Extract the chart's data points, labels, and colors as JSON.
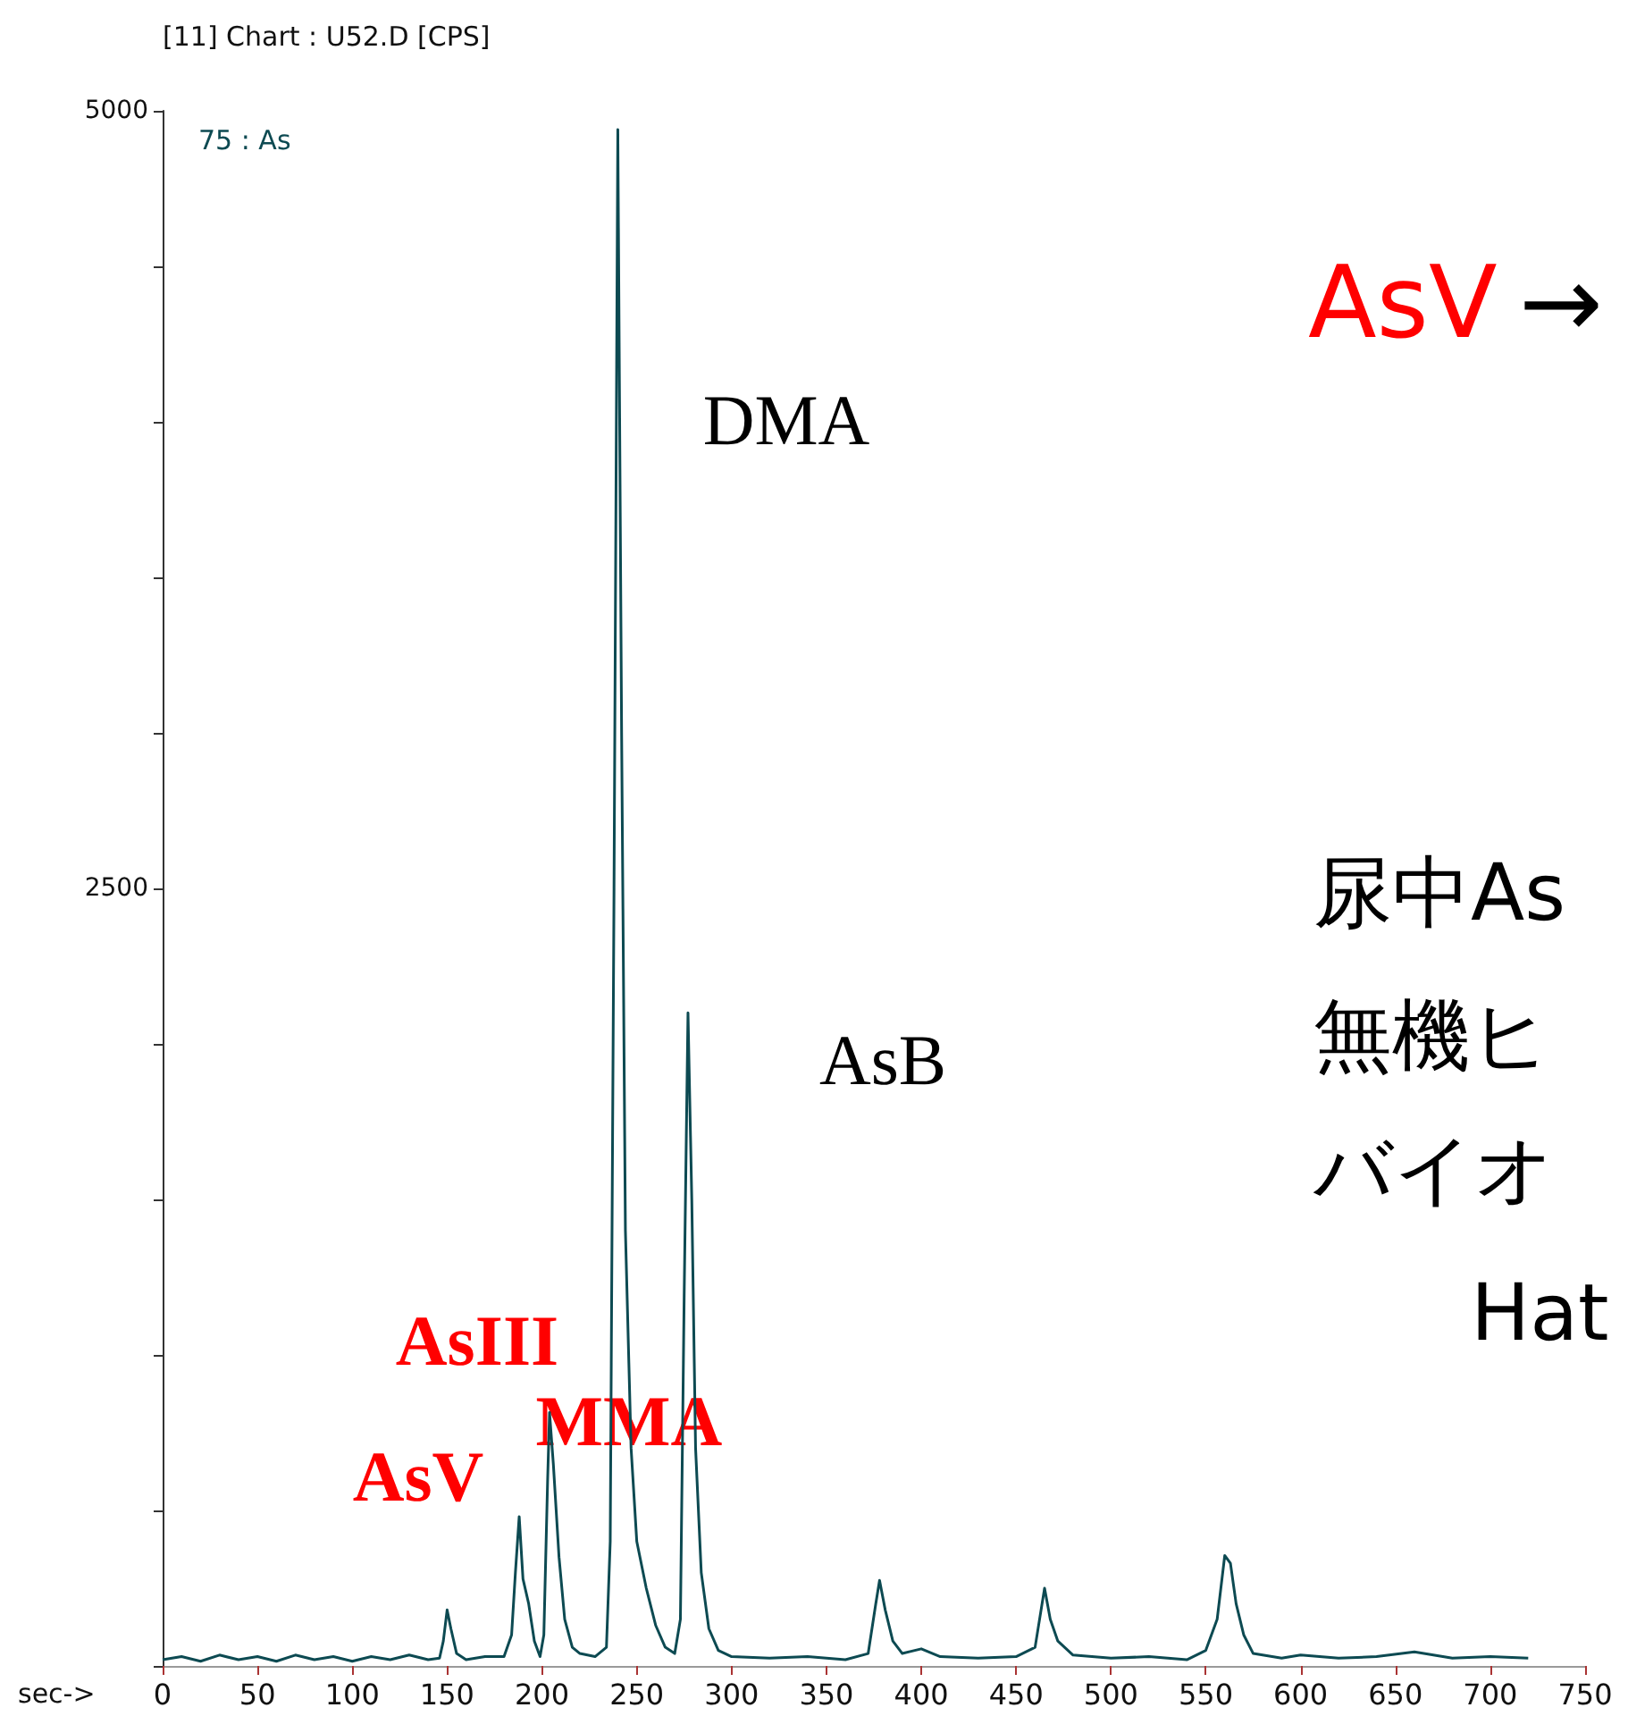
{
  "chart_data": {
    "type": "line",
    "title": "[11] Chart : U52.D [CPS]",
    "xlabel": "sec->",
    "x": [
      0,
      10,
      20,
      30,
      40,
      50,
      60,
      70,
      80,
      90,
      100,
      110,
      120,
      130,
      140,
      146,
      148,
      150,
      152,
      155,
      160,
      170,
      180,
      184,
      186,
      188,
      190,
      193,
      196,
      199,
      201,
      203,
      204,
      206,
      209,
      212,
      216,
      220,
      228,
      234,
      236,
      238,
      240,
      242,
      244,
      247,
      250,
      255,
      260,
      265,
      270,
      273,
      275,
      277,
      279,
      281,
      284,
      288,
      293,
      300,
      320,
      340,
      360,
      372,
      376,
      378,
      381,
      385,
      390,
      400,
      410,
      430,
      450,
      460,
      465,
      468,
      472,
      480,
      500,
      520,
      540,
      550,
      556,
      560,
      563,
      566,
      570,
      575,
      590,
      600,
      620,
      640,
      660,
      680,
      700,
      720
    ],
    "series": [
      {
        "name": "75 : As",
        "color": "#0d4a52",
        "values": [
          20,
          30,
          15,
          35,
          20,
          30,
          15,
          35,
          20,
          30,
          15,
          30,
          20,
          35,
          20,
          25,
          80,
          180,
          120,
          40,
          20,
          30,
          30,
          100,
          300,
          480,
          280,
          200,
          80,
          30,
          100,
          600,
          815,
          650,
          350,
          150,
          60,
          40,
          30,
          60,
          400,
          2500,
          4940,
          3000,
          1400,
          700,
          400,
          250,
          130,
          60,
          40,
          150,
          1200,
          2100,
          1500,
          700,
          300,
          120,
          50,
          30,
          25,
          30,
          20,
          40,
          200,
          275,
          180,
          80,
          40,
          55,
          30,
          25,
          30,
          60,
          250,
          150,
          80,
          35,
          25,
          30,
          20,
          50,
          150,
          355,
          330,
          200,
          100,
          40,
          25,
          35,
          25,
          30,
          45,
          25,
          30,
          25
        ]
      }
    ],
    "xlim": [
      0,
      750
    ],
    "xticks": [
      0,
      50,
      100,
      150,
      200,
      250,
      300,
      350,
      400,
      450,
      500,
      550,
      600,
      650,
      700,
      750
    ],
    "ylim": [
      0,
      5000
    ],
    "yticks": [
      {
        "value": 0,
        "label": null
      },
      {
        "value": 500,
        "label": null
      },
      {
        "value": 1000,
        "label": null
      },
      {
        "value": 1500,
        "label": null
      },
      {
        "value": 2000,
        "label": null
      },
      2500,
      {
        "value": 3000,
        "label": null
      },
      {
        "value": 3500,
        "label": null
      },
      {
        "value": 4000,
        "label": null
      },
      {
        "value": 4500,
        "label": null
      },
      5000
    ],
    "grid": false,
    "legend": "top left",
    "marker": "none",
    "line_style": "solid",
    "annotations": [
      "DMA",
      "AsB",
      "AsIII",
      "MMA",
      "AsV",
      "AsV",
      "→",
      "尿中As",
      "無機ヒ",
      "バイオ",
      "Hat"
    ]
  }
}
